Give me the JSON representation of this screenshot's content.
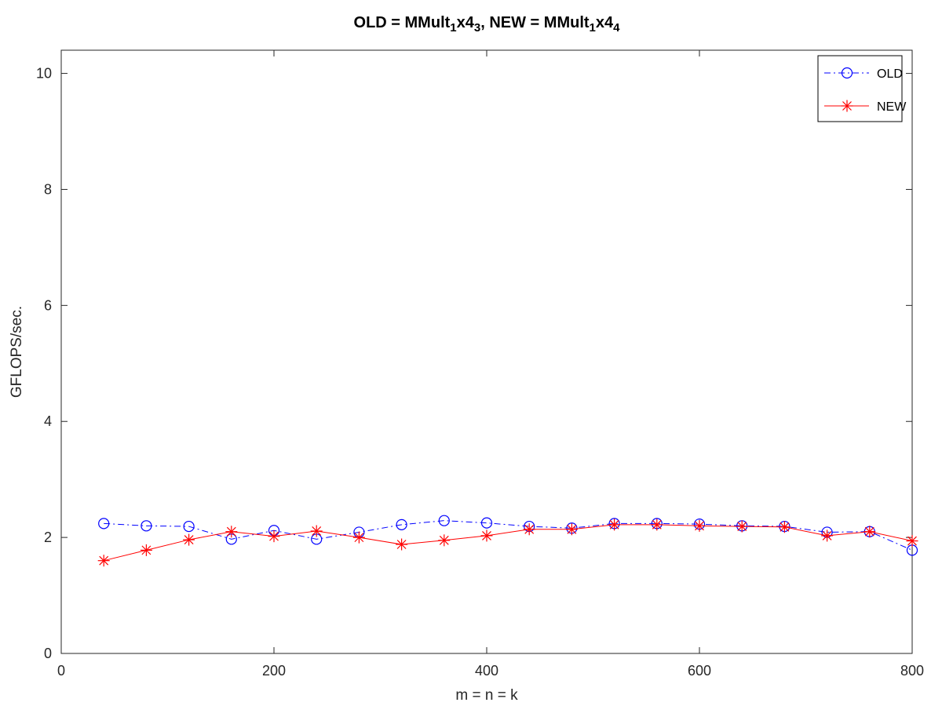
{
  "chart_data": {
    "type": "line",
    "title": {
      "parts": [
        {
          "text": "OLD = MMult"
        },
        {
          "text": "1",
          "sub": true
        },
        {
          "text": "x4"
        },
        {
          "text": "3",
          "sub": true
        },
        {
          "text": ", NEW = MMult"
        },
        {
          "text": "1",
          "sub": true
        },
        {
          "text": "x4"
        },
        {
          "text": "4",
          "sub": true
        }
      ]
    },
    "xlabel": "m = n = k",
    "ylabel": "GFLOPS/sec.",
    "xlim": [
      0,
      800
    ],
    "ylim": [
      0,
      10.4
    ],
    "xticks": [
      0,
      200,
      400,
      600,
      800
    ],
    "yticks": [
      0,
      2,
      4,
      6,
      8,
      10
    ],
    "grid": false,
    "legend_position": "top-right",
    "x": [
      40,
      80,
      120,
      160,
      200,
      240,
      280,
      320,
      360,
      400,
      440,
      480,
      520,
      560,
      600,
      640,
      680,
      720,
      760,
      800
    ],
    "series": [
      {
        "name": "OLD",
        "color": "#0000ff",
        "marker": "circle",
        "line_style": "dash-dot",
        "values": [
          2.24,
          2.2,
          2.19,
          1.97,
          2.12,
          1.97,
          2.09,
          2.22,
          2.29,
          2.25,
          2.19,
          2.16,
          2.24,
          2.24,
          2.23,
          2.2,
          2.19,
          2.09,
          2.1,
          1.78
        ]
      },
      {
        "name": "NEW",
        "color": "#ff0000",
        "marker": "asterisk",
        "line_style": "solid",
        "values": [
          1.6,
          1.78,
          1.96,
          2.1,
          2.02,
          2.11,
          2.0,
          1.88,
          1.95,
          2.03,
          2.14,
          2.14,
          2.22,
          2.22,
          2.2,
          2.19,
          2.18,
          2.03,
          2.1,
          1.94
        ]
      }
    ]
  }
}
